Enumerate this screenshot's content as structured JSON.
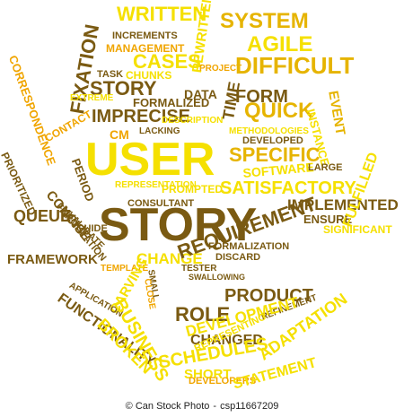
{
  "image": {
    "colors": {
      "background": "#ffffff",
      "yellow": "#f5e000",
      "orange": "#f0a500",
      "amber": "#e6b400",
      "brown": "#7a5a12"
    },
    "words": [
      {
        "text": "WRITTEN",
        "color": "yellow"
      },
      {
        "text": "SYSTEM",
        "color": "amber"
      },
      {
        "text": "INCREMENTS",
        "color": "brown"
      },
      {
        "text": "REWRITTEN",
        "color": "yellow"
      },
      {
        "text": "AGILE",
        "color": "yellow"
      },
      {
        "text": "MANAGEMENT",
        "color": "orange"
      },
      {
        "text": "CASES",
        "color": "yellow"
      },
      {
        "text": "PROJECT",
        "color": "orange"
      },
      {
        "text": "DIFFICULT",
        "color": "amber"
      },
      {
        "text": "FIXATION",
        "color": "brown"
      },
      {
        "text": "CHUNKS",
        "color": "yellow"
      },
      {
        "text": "TASK",
        "color": "brown"
      },
      {
        "text": "STORY",
        "color": "brown"
      },
      {
        "text": "EXTREME",
        "color": "yellow"
      },
      {
        "text": "DATA",
        "color": "brown"
      },
      {
        "text": "TIME",
        "color": "brown"
      },
      {
        "text": "FORM",
        "color": "brown"
      },
      {
        "text": "FORMALIZED",
        "color": "brown"
      },
      {
        "text": "QUICK",
        "color": "amber"
      },
      {
        "text": "EVENT",
        "color": "amber"
      },
      {
        "text": "CORRESPONDENCE",
        "color": "orange"
      },
      {
        "text": "CONTACT",
        "color": "orange"
      },
      {
        "text": "IMPRECISE",
        "color": "brown"
      },
      {
        "text": "DESCRIPTION",
        "color": "yellow"
      },
      {
        "text": "INSTANCE",
        "color": "yellow"
      },
      {
        "text": "METHODOLOGIES",
        "color": "yellow"
      },
      {
        "text": "LACKING",
        "color": "brown"
      },
      {
        "text": "DEVELOPED",
        "color": "brown"
      },
      {
        "text": "CM",
        "color": "orange"
      },
      {
        "text": "USER",
        "color": "yellow"
      },
      {
        "text": "SPECIFIC",
        "color": "amber"
      },
      {
        "text": "PERIOD",
        "color": "brown"
      },
      {
        "text": "SOFTWARE",
        "color": "yellow"
      },
      {
        "text": "LARGE",
        "color": "brown"
      },
      {
        "text": "PRIORITIZED",
        "color": "brown"
      },
      {
        "text": "CONCISE",
        "color": "brown"
      },
      {
        "text": "SATISFACTORY",
        "color": "yellow"
      },
      {
        "text": "FORMULATION",
        "color": "brown"
      },
      {
        "text": "VALIDATE",
        "color": "brown"
      },
      {
        "text": "PROMPTED",
        "color": "yellow"
      },
      {
        "text": "REPRESENTATION",
        "color": "yellow"
      },
      {
        "text": "CONSULTANT",
        "color": "brown"
      },
      {
        "text": "IMPLEMENTED",
        "color": "brown"
      },
      {
        "text": "QUEUE",
        "color": "brown"
      },
      {
        "text": "GUIDE",
        "color": "brown"
      },
      {
        "text": "ENSURE",
        "color": "brown"
      },
      {
        "text": "STORY",
        "color": "brown"
      },
      {
        "text": "SIGNIFICANT",
        "color": "yellow"
      },
      {
        "text": "FULFILLED",
        "color": "yellow"
      },
      {
        "text": "FORMALIZATION",
        "color": "brown"
      },
      {
        "text": "DISCARD",
        "color": "brown"
      },
      {
        "text": "FRAMEWORK",
        "color": "brown"
      },
      {
        "text": "CHANGE",
        "color": "yellow"
      },
      {
        "text": "TEMPLATE",
        "color": "orange"
      },
      {
        "text": "REQUIREMENT",
        "color": "brown"
      },
      {
        "text": "TESTER",
        "color": "brown"
      },
      {
        "text": "SWALLOWING",
        "color": "brown"
      },
      {
        "text": "CARVING",
        "color": "yellow"
      },
      {
        "text": "SMALL",
        "color": "brown"
      },
      {
        "text": "CLOSE",
        "color": "orange"
      },
      {
        "text": "FUNCTIONALITY",
        "color": "brown"
      },
      {
        "text": "APPLICATION",
        "color": "brown"
      },
      {
        "text": "BUSINESS",
        "color": "yellow"
      },
      {
        "text": "PRODUCT",
        "color": "brown"
      },
      {
        "text": "ROLE",
        "color": "brown"
      },
      {
        "text": "REFINEMENT",
        "color": "brown"
      },
      {
        "text": "DEVELOPMENT",
        "color": "yellow"
      },
      {
        "text": "ADAPTATION",
        "color": "yellow"
      },
      {
        "text": "BROKEN",
        "color": "yellow"
      },
      {
        "text": "CHANGED",
        "color": "brown"
      },
      {
        "text": "SCHEDULES",
        "color": "yellow"
      },
      {
        "text": "SHORT",
        "color": "yellow"
      },
      {
        "text": "REPRESENTING",
        "color": "yellow"
      },
      {
        "text": "DEVELOPERS",
        "color": "orange"
      },
      {
        "text": "STATEMENT",
        "color": "yellow"
      }
    ]
  },
  "footer": {
    "copyright_symbol": "©",
    "brand": "Can Stock Photo",
    "separator": "-",
    "image_id": "csp11667209"
  }
}
